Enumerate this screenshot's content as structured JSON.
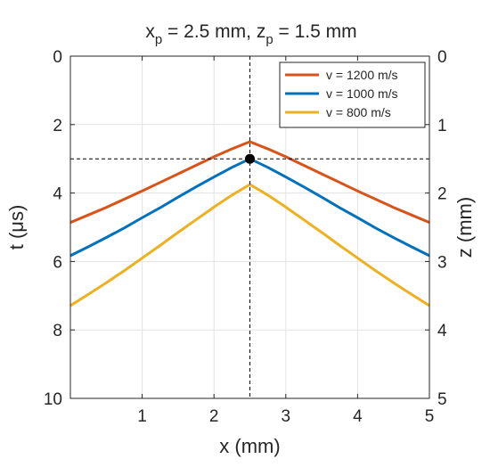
{
  "chart_data": {
    "type": "line",
    "title_main_1": "x",
    "title_sub_1": "p",
    "title_main_2": " = 2.5 mm, z",
    "title_sub_2": "p",
    "title_main_3": " = 1.5 mm",
    "xlabel": "x (mm)",
    "ylabel_left": "t (μs)",
    "ylabel_right": "z (mm)",
    "xlim": [
      0,
      5
    ],
    "ylim_left": [
      0,
      10
    ],
    "ylim_right": [
      0,
      5
    ],
    "y_reversed": true,
    "grid": true,
    "legend_position": "top-right",
    "x_ticks": [
      "1",
      "2",
      "3",
      "4",
      "5"
    ],
    "y_left_ticks": [
      "0",
      "2",
      "4",
      "6",
      "8",
      "10"
    ],
    "y_right_ticks": [
      "0",
      "1",
      "2",
      "3",
      "4",
      "5"
    ],
    "x": [
      0,
      0.25,
      0.5,
      0.75,
      1.0,
      1.25,
      1.5,
      1.75,
      2.0,
      2.25,
      2.5,
      2.75,
      3.0,
      3.25,
      3.5,
      3.75,
      4.0,
      4.25,
      4.5,
      4.75,
      5.0
    ],
    "series": [
      {
        "name": "v = 1200 m/s",
        "color": "#d95319",
        "values": [
          4.86,
          4.64,
          4.42,
          4.18,
          3.94,
          3.69,
          3.44,
          3.19,
          2.94,
          2.71,
          2.5,
          2.71,
          2.94,
          3.19,
          3.44,
          3.69,
          3.94,
          4.18,
          4.42,
          4.64,
          4.86
        ]
      },
      {
        "name": "v = 1000 m/s",
        "color": "#0072bd",
        "values": [
          5.83,
          5.57,
          5.3,
          5.02,
          4.72,
          4.43,
          4.12,
          3.82,
          3.53,
          3.25,
          3.0,
          3.25,
          3.53,
          3.82,
          4.12,
          4.43,
          4.72,
          5.02,
          5.3,
          5.57,
          5.83
        ]
      },
      {
        "name": "v = 800 m/s",
        "color": "#edb120",
        "values": [
          7.29,
          6.96,
          6.62,
          6.27,
          5.9,
          5.53,
          5.15,
          4.78,
          4.41,
          4.06,
          3.75,
          4.06,
          4.41,
          4.78,
          5.15,
          5.53,
          5.9,
          6.27,
          6.62,
          6.96,
          7.29
        ]
      }
    ],
    "marker": {
      "x": 2.5,
      "t": 3.0,
      "color": "#000000"
    },
    "crosshair": {
      "x": 2.5,
      "t": 3.0
    }
  }
}
